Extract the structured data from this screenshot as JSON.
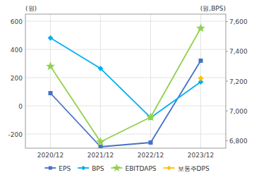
{
  "chart_data": {
    "type": "line",
    "categories": [
      "2020/12",
      "2021/12",
      "2022/12",
      "2023/12"
    ],
    "series": [
      {
        "name": "EPS",
        "color": "#4472c4",
        "marker": "square",
        "values": [
          90,
          -290,
          -260,
          320
        ]
      },
      {
        "name": "BPS",
        "color": "#00b0f0",
        "marker": "diamond",
        "axis": "y2",
        "values": [
          7490,
          7285,
          6955,
          7195
        ]
      },
      {
        "name": "EBITDAPS",
        "color": "#92d050",
        "marker": "star",
        "values": [
          280,
          -255,
          -80,
          550
        ]
      },
      {
        "name": "보통주DPS",
        "color": "#ffc000",
        "marker": "diamond",
        "axis": "y2",
        "values": [
          null,
          null,
          null,
          7220
        ]
      }
    ],
    "ylim": [
      -300,
      650
    ],
    "yticks": [
      -200,
      0,
      200,
      400,
      600
    ],
    "y2lim": [
      6750,
      7650
    ],
    "y2ticks": [
      {
        "value": 6800,
        "label": "6,800"
      },
      {
        "value": 7000,
        "label": "7,000"
      },
      {
        "value": 7200,
        "label": "7,200"
      },
      {
        "value": 7400,
        "label": "7,400"
      },
      {
        "value": 7600,
        "label": "7,600"
      }
    ],
    "ylabel": "(원)",
    "y2label": "(원,BPS)",
    "grid": true,
    "legend": "bottom"
  }
}
